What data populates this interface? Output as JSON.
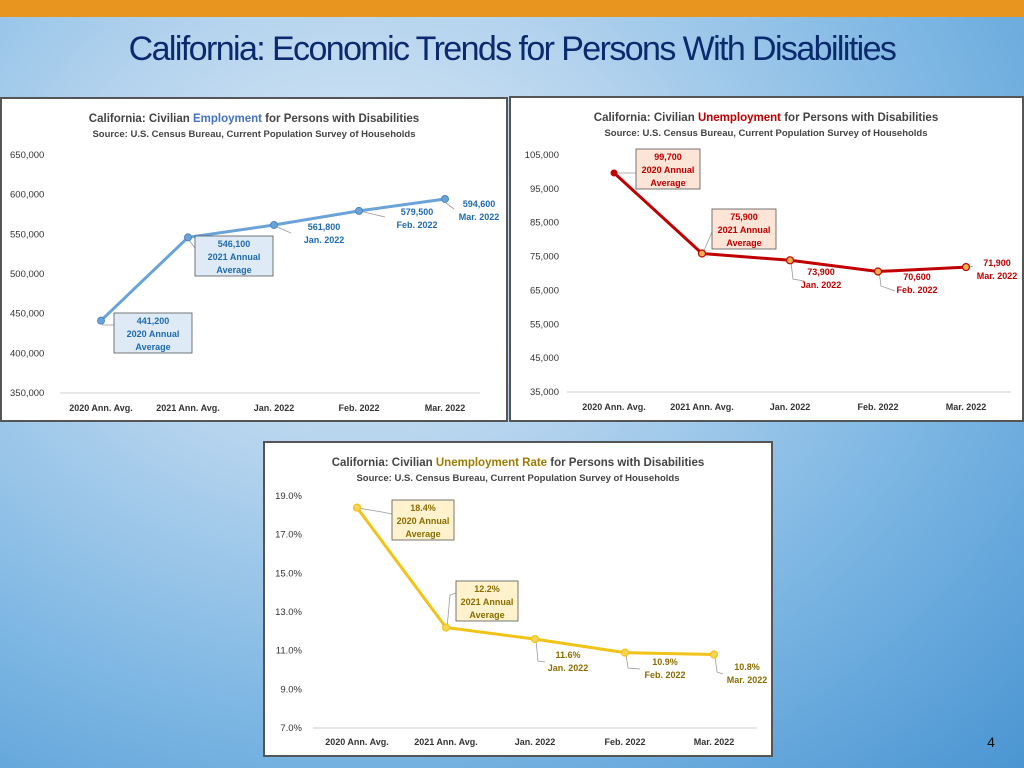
{
  "slide": {
    "title": "California: Economic Trends for Persons With Disabilities",
    "page_number": "4",
    "accent_color": "#e8951f",
    "title_color": "#0b2a6e"
  },
  "chart_data": [
    {
      "id": "employment",
      "type": "line",
      "title_pre": "California: Civilian ",
      "title_key": "Employment",
      "title_post": " for Persons with Disabilities",
      "subtitle": "Source: U.S. Census Bureau, Current Population Survey of Households",
      "key_color": "#4472c4",
      "line_color": "#6aa3d8",
      "label_color": "#1f6ab0",
      "label_fill": "#deebf7",
      "categories": [
        "2020 Ann. Avg.",
        "2021 Ann. Avg.",
        "Jan. 2022",
        "Feb. 2022",
        "Mar. 2022"
      ],
      "values": [
        441200,
        546100,
        561800,
        579500,
        594600
      ],
      "ylim": [
        350000,
        650000
      ],
      "yticks": [
        "650,000",
        "600,000",
        "550,000",
        "500,000",
        "450,000",
        "400,000",
        "350,000"
      ],
      "grid": false,
      "labels": [
        {
          "lines": [
            "441,200",
            "2020 Annual",
            "Average"
          ],
          "boxed": true
        },
        {
          "lines": [
            "546,100",
            "2021 Annual",
            "Average"
          ],
          "boxed": true
        },
        {
          "lines": [
            "561,800",
            "Jan. 2022"
          ],
          "boxed": false
        },
        {
          "lines": [
            "579,500",
            "Feb. 2022"
          ],
          "boxed": false
        },
        {
          "lines": [
            "594,600",
            "Mar. 2022"
          ],
          "boxed": false
        }
      ]
    },
    {
      "id": "unemployment",
      "type": "line",
      "title_pre": "California: Civilian ",
      "title_key": "Unemployment",
      "title_post": " for Persons with Disabilities",
      "subtitle": "Source: U.S. Census Bureau, Current Population Survey of Households",
      "key_color": "#c00000",
      "line_color": "#c00000",
      "label_color": "#c00000",
      "label_fill": "#fce4d6",
      "categories": [
        "2020 Ann. Avg.",
        "2021 Ann. Avg.",
        "Jan. 2022",
        "Feb. 2022",
        "Mar. 2022"
      ],
      "values": [
        99700,
        75900,
        73900,
        70600,
        71900
      ],
      "ylim": [
        35000,
        105000
      ],
      "yticks": [
        "105,000",
        "95,000",
        "85,000",
        "75,000",
        "65,000",
        "55,000",
        "45,000",
        "35,000"
      ],
      "grid": false,
      "labels": [
        {
          "lines": [
            "99,700",
            "2020 Annual",
            "Average"
          ],
          "boxed": true
        },
        {
          "lines": [
            "75,900",
            "2021 Annual",
            "Average"
          ],
          "boxed": true
        },
        {
          "lines": [
            "73,900",
            "Jan. 2022"
          ],
          "boxed": false
        },
        {
          "lines": [
            "70,600",
            "Feb. 2022"
          ],
          "boxed": false
        },
        {
          "lines": [
            "71,900",
            "Mar. 2022"
          ],
          "boxed": false
        }
      ]
    },
    {
      "id": "rate",
      "type": "line",
      "title_pre": "California: Civilian ",
      "title_key": "Unemployment Rate",
      "title_post": " for Persons with Disabilities",
      "subtitle": "Source: U.S. Census Bureau, Current Population Survey of Households",
      "key_color": "#9c7b00",
      "line_color": "#f2c317",
      "label_color": "#8a6d00",
      "label_fill": "#fff2cc",
      "categories": [
        "2020 Ann. Avg.",
        "2021 Ann. Avg.",
        "Jan. 2022",
        "Feb. 2022",
        "Mar. 2022"
      ],
      "values": [
        18.4,
        12.2,
        11.6,
        10.9,
        10.8
      ],
      "ylim": [
        7.0,
        19.0
      ],
      "yticks": [
        "19.0%",
        "17.0%",
        "15.0%",
        "13.0%",
        "11.0%",
        "9.0%",
        "7.0%"
      ],
      "grid": false,
      "labels": [
        {
          "lines": [
            "18.4%",
            "2020 Annual",
            "Average"
          ],
          "boxed": true
        },
        {
          "lines": [
            "12.2%",
            "2021 Annual",
            "Average"
          ],
          "boxed": true
        },
        {
          "lines": [
            "11.6%",
            "Jan. 2022"
          ],
          "boxed": false
        },
        {
          "lines": [
            "10.9%",
            "Feb. 2022"
          ],
          "boxed": false
        },
        {
          "lines": [
            "10.8%",
            "Mar. 2022"
          ],
          "boxed": false
        }
      ]
    }
  ]
}
